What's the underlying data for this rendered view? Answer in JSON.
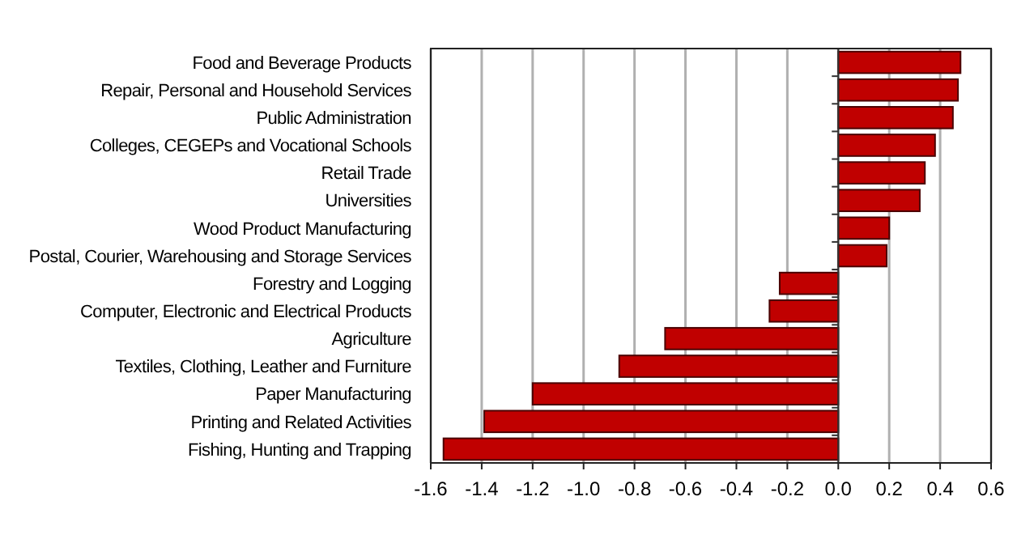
{
  "chart_data": {
    "type": "bar",
    "orientation": "horizontal",
    "categories": [
      "Food and Beverage Products",
      "Repair, Personal and Household Services",
      "Public Administration",
      "Colleges, CEGEPs and Vocational Schools",
      "Retail Trade",
      "Universities",
      "Wood Product Manufacturing",
      "Postal, Courier, Warehousing and Storage Services",
      "Forestry and Logging",
      "Computer, Electronic and Electrical Products",
      "Agriculture",
      "Textiles, Clothing, Leather and Furniture",
      "Paper Manufacturing",
      "Printing and Related Activities",
      "Fishing, Hunting and Trapping"
    ],
    "values": [
      0.48,
      0.47,
      0.45,
      0.38,
      0.34,
      0.32,
      0.2,
      0.19,
      -0.23,
      -0.27,
      -0.68,
      -0.86,
      -1.2,
      -1.39,
      -1.55
    ],
    "color": "#c00000",
    "xlim": [
      -1.6,
      0.6
    ],
    "xticks": [
      {
        "value": -1.6,
        "label": "-1.6"
      },
      {
        "value": -1.4,
        "label": "-1.4"
      },
      {
        "value": -1.2,
        "label": "-1.2"
      },
      {
        "value": -1.0,
        "label": "-1.0"
      },
      {
        "value": -0.8,
        "label": "-0.8"
      },
      {
        "value": -0.6,
        "label": "-0.6"
      },
      {
        "value": -0.4,
        "label": "-0.4"
      },
      {
        "value": -0.2,
        "label": "-0.2"
      },
      {
        "value": 0,
        "label": "0.0"
      },
      {
        "value": 0.2,
        "label": "0.2"
      },
      {
        "value": 0.4,
        "label": "0.4"
      },
      {
        "value": 0.6,
        "label": "0.6"
      }
    ],
    "grid": "x"
  }
}
